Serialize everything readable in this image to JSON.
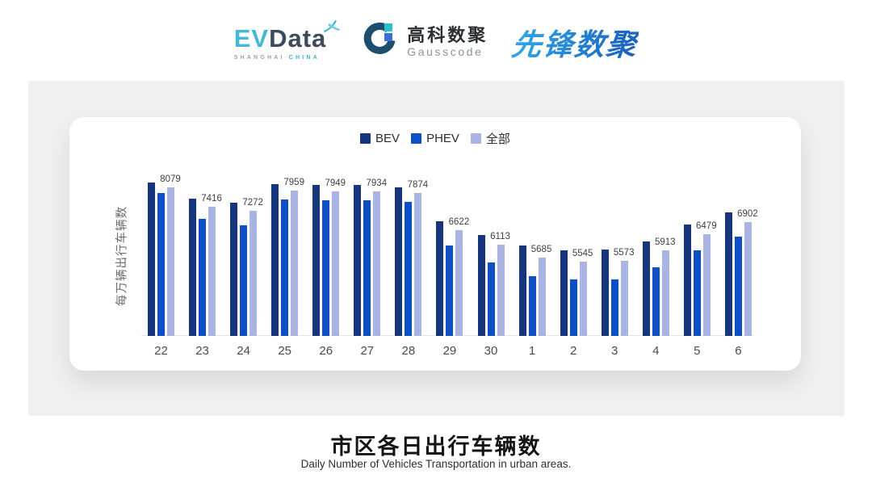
{
  "header": {
    "evdata": {
      "ev": "EV",
      "data": "Data",
      "sub_left": "SHANGHAI",
      "sub_right": "CHINA"
    },
    "gausscode": {
      "cn": "高科数聚",
      "en": "Gausscode"
    },
    "pioneer": {
      "text": "先锋数聚"
    }
  },
  "chart_data": {
    "type": "bar",
    "title": "市区各日出行车辆数",
    "subtitle": "Daily Number of Vehicles Transportation in urban areas.",
    "ylabel": "每万辆出行车辆数",
    "categories": [
      "22",
      "23",
      "24",
      "25",
      "26",
      "27",
      "28",
      "29",
      "30",
      "1",
      "2",
      "3",
      "4",
      "5",
      "6"
    ],
    "series": [
      {
        "name": "BEV",
        "color": "#16357d",
        "values": [
          8230,
          7690,
          7560,
          8190,
          8170,
          8170,
          8080,
          6930,
          6450,
          6090,
          5925,
          5950,
          6240,
          6810,
          7220
        ]
      },
      {
        "name": "PHEV",
        "color": "#0d50c5",
        "values": [
          7870,
          6990,
          6790,
          7655,
          7630,
          7630,
          7580,
          6090,
          5520,
          5050,
          4930,
          4930,
          5350,
          5930,
          6390
        ]
      },
      {
        "name": "全部",
        "color": "#aab4e2",
        "values": [
          8079,
          7416,
          7272,
          7959,
          7949,
          7934,
          7874,
          6622,
          6113,
          5685,
          5545,
          5573,
          5913,
          6479,
          6902
        ]
      }
    ],
    "data_labels": [
      "8079",
      "7416",
      "7272",
      "7959",
      "7949",
      "7934",
      "7874",
      "6622",
      "6113",
      "5685",
      "5545",
      "5573",
      "5913",
      "6479",
      "6902"
    ],
    "data_labels_series": "全部",
    "axis": {
      "y_min": 3000,
      "y_max": 8600,
      "grid": false,
      "legend_position": "top"
    }
  },
  "colors": {
    "bev": "#16357d",
    "phev": "#0d50c5",
    "all": "#aab4e2",
    "panel_bg": "#f0f0f1",
    "axis_line": "#e3e3e6",
    "evdata_cyan": "#45b7d9",
    "evdata_dark": "#3d4a59",
    "pioneer_blue": "#1e7dd0"
  }
}
